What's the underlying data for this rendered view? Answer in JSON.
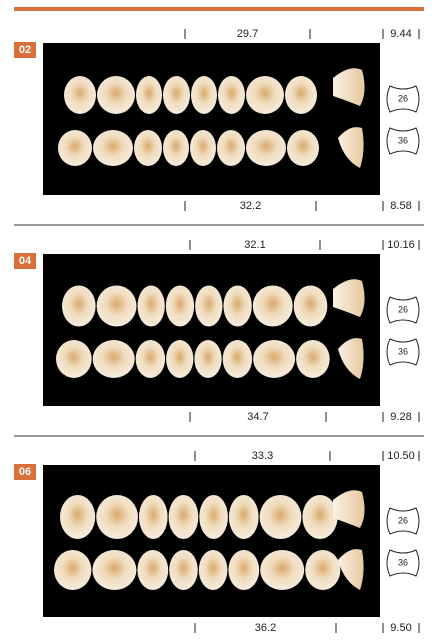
{
  "sections": [
    {
      "label": "02",
      "top_width": "29.7",
      "top_height": "9.44",
      "bottom_width": "32.2",
      "bottom_height": "8.58",
      "upper_code": "26",
      "lower_code": "36"
    },
    {
      "label": "04",
      "top_width": "32.1",
      "top_height": "10.16",
      "bottom_width": "34.7",
      "bottom_height": "9.28",
      "upper_code": "26",
      "lower_code": "36"
    },
    {
      "label": "06",
      "top_width": "33.3",
      "top_height": "10.50",
      "bottom_width": "36.2",
      "bottom_height": "9.50",
      "upper_code": "26",
      "lower_code": "36"
    }
  ]
}
